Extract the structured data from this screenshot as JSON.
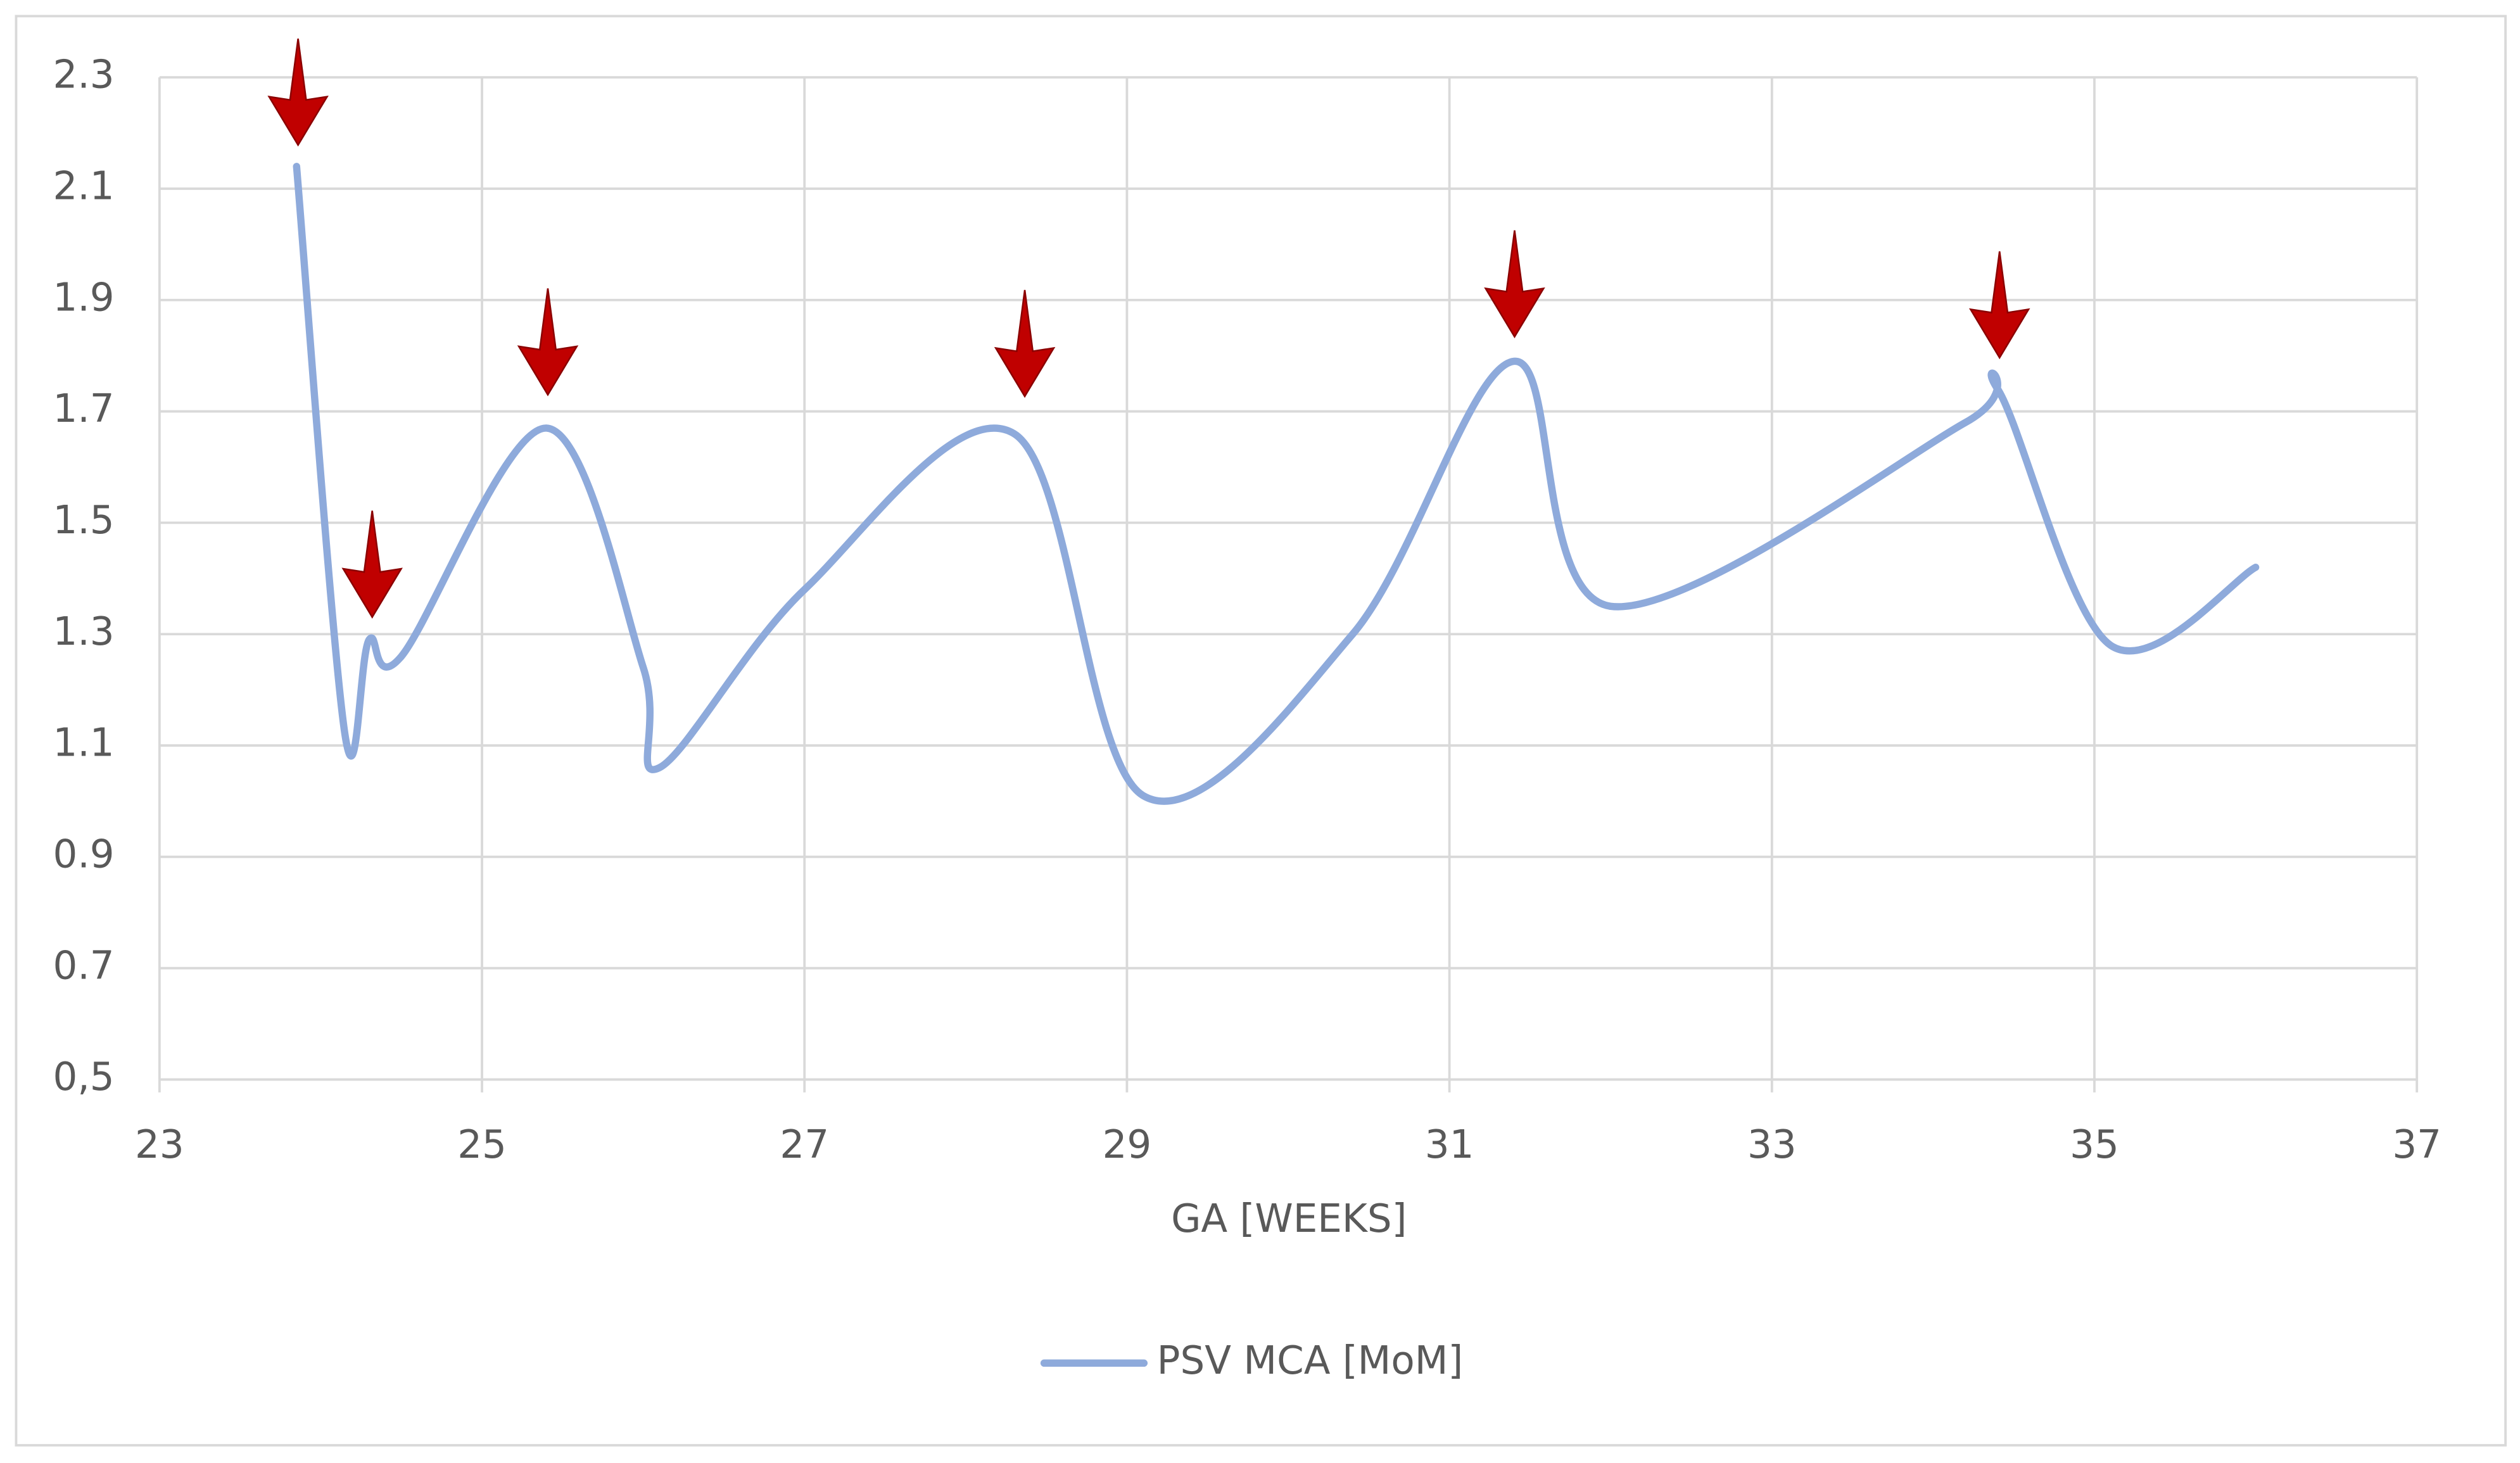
{
  "chart_data": {
    "type": "line",
    "x_label": "GA [WEEKS]",
    "x": [
      23.85,
      24.15,
      24.3,
      24.5,
      25.4,
      26.0,
      26.1,
      27.0,
      28.3,
      29.1,
      30.4,
      31.4,
      32.0,
      34.2,
      34.4,
      35.1,
      36.0
    ],
    "series": [
      {
        "name": "PSV MCA [MoM]",
        "color": "#8eaadb",
        "values": [
          2.14,
          1.12,
          1.29,
          1.26,
          1.67,
          1.24,
          1.06,
          1.38,
          1.66,
          1.01,
          1.3,
          1.79,
          1.35,
          1.68,
          1.74,
          1.28,
          1.42
        ]
      }
    ],
    "xlim": [
      23,
      37
    ],
    "xticks": [
      23,
      25,
      27,
      29,
      31,
      33,
      35,
      37
    ],
    "ylim": [
      0.5,
      2.3
    ],
    "yticks": [
      {
        "value": 0.5,
        "label": "0,5"
      },
      0.7,
      0.9,
      1.1,
      1.3,
      1.5,
      1.7,
      1.9,
      2.1,
      2.3
    ],
    "grid": true,
    "legend": "bottom"
  }
}
